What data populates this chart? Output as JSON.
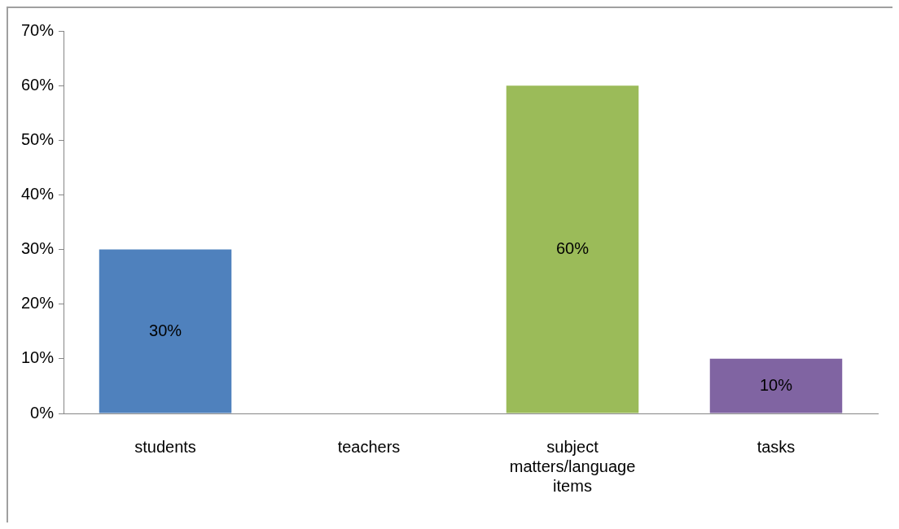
{
  "chart_data": {
    "type": "bar",
    "categories": [
      "students",
      "teachers",
      "subject matters/language items",
      "tasks"
    ],
    "values": [
      30,
      0,
      60,
      10
    ],
    "colors": [
      "#4f81bd",
      "#c0504d",
      "#9bbb59",
      "#8064a2"
    ],
    "value_labels": [
      "30%",
      null,
      "60%",
      "10%"
    ],
    "ylim": [
      0,
      70
    ],
    "yticks": [
      {
        "value": 0,
        "label": "0%"
      },
      {
        "value": 10,
        "label": "10%"
      },
      {
        "value": 20,
        "label": "20%"
      },
      {
        "value": 30,
        "label": "30%"
      },
      {
        "value": 40,
        "label": "40%"
      },
      {
        "value": 50,
        "label": "50%"
      },
      {
        "value": 60,
        "label": "60%"
      },
      {
        "value": 70,
        "label": "70%"
      }
    ],
    "grid": false,
    "legend": false
  }
}
